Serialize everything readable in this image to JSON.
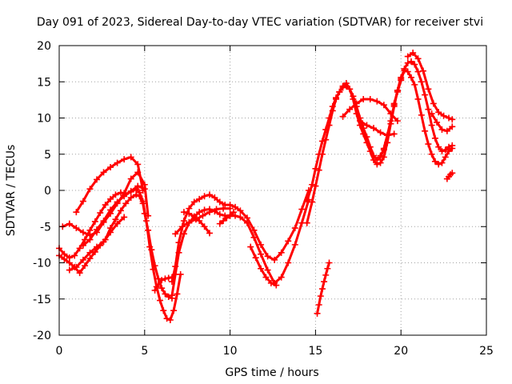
{
  "chart_data": {
    "type": "scatter",
    "title": "Day 091 of 2023, Sidereal Day-to-day VTEC variation (SDTVAR) for receiver stvi",
    "xlabel": "GPS time / hours",
    "ylabel": "SDTVAR / TECUs",
    "xlim": [
      0,
      25
    ],
    "ylim": [
      -20,
      20
    ],
    "xticks": [
      0,
      5,
      10,
      15,
      20,
      25
    ],
    "yticks": [
      -20,
      -15,
      -10,
      -5,
      0,
      5,
      10,
      15,
      20
    ],
    "grid": true,
    "marker": "+",
    "color": "#ff0000",
    "series": [
      {
        "x": [
          0.0,
          0.3,
          0.6,
          0.9,
          1.2,
          1.5,
          1.8,
          2.1,
          2.4,
          2.7,
          3.0,
          3.3,
          3.6,
          3.9,
          4.2,
          4.5,
          4.7,
          4.9,
          5.0,
          5.2,
          5.4,
          5.6,
          5.8,
          6.0,
          6.2,
          6.4,
          6.6
        ],
        "y": [
          -9.0,
          -9.5,
          -10.0,
          -10.6,
          -11.4,
          -10.4,
          -9.4,
          -8.5,
          -7.6,
          -6.8,
          -5.2,
          -4.0,
          -2.8,
          -1.8,
          -1.0,
          -0.6,
          -0.8,
          -1.8,
          -3.2,
          -5.5,
          -8.2,
          -10.4,
          -12.2,
          -13.5,
          -14.3,
          -14.7,
          -14.9
        ]
      },
      {
        "x": [
          0.0,
          0.3,
          0.6,
          0.9,
          1.2,
          1.5,
          1.8,
          2.1,
          2.4,
          2.7,
          3.0,
          3.3,
          3.6,
          3.9,
          4.2,
          4.5,
          4.7,
          4.9,
          5.1,
          5.3,
          5.5,
          5.7,
          5.9,
          6.1,
          6.3,
          6.5,
          6.7,
          6.9,
          7.1
        ],
        "y": [
          -8.0,
          -8.8,
          -9.3,
          -9.0,
          -8.0,
          -6.8,
          -5.5,
          -4.3,
          -3.1,
          -2.0,
          -1.2,
          -0.6,
          -0.3,
          -0.5,
          -0.2,
          0.2,
          -0.3,
          -1.5,
          -4.2,
          -7.8,
          -10.9,
          -13.3,
          -15.2,
          -16.6,
          -17.7,
          -17.9,
          -16.6,
          -14.3,
          -11.6
        ]
      },
      {
        "x": [
          1.0,
          1.4,
          1.8,
          2.2,
          2.6,
          3.0,
          3.4,
          3.8,
          4.2,
          4.6,
          4.9
        ],
        "y": [
          -3.0,
          -1.5,
          0.2,
          1.5,
          2.5,
          3.2,
          3.8,
          4.3,
          4.6,
          3.6,
          0.0
        ]
      },
      {
        "x": [
          0.2,
          0.6,
          1.0,
          1.4,
          1.8,
          2.2,
          2.6,
          3.0,
          3.4,
          3.8,
          4.2,
          4.6,
          5.0,
          5.2
        ],
        "y": [
          -5.0,
          -4.6,
          -5.2,
          -5.8,
          -6.2,
          -5.8,
          -4.4,
          -3.2,
          -1.8,
          -0.4,
          1.6,
          2.5,
          0.8,
          -3.5
        ]
      },
      {
        "x": [
          0.6,
          1.0,
          1.4,
          1.8,
          2.2,
          2.6,
          3.0,
          3.4,
          3.8
        ],
        "y": [
          -11.0,
          -10.6,
          -9.6,
          -8.6,
          -7.8,
          -7.1,
          -5.8,
          -4.6,
          -3.7
        ]
      },
      {
        "x": [
          1.4,
          1.8,
          2.2,
          2.6,
          3.0,
          3.4,
          3.8,
          4.2,
          4.6,
          5.0
        ],
        "y": [
          -7.6,
          -6.8,
          -5.4,
          -4.2,
          -2.7,
          -1.6,
          -0.8,
          -0.1,
          0.6,
          0.2
        ]
      },
      {
        "x": [
          5.6,
          5.8,
          6.0,
          6.2,
          6.4,
          6.6
        ],
        "y": [
          -13.8,
          -13.0,
          -12.4,
          -12.2,
          -12.1,
          -12.0
        ]
      },
      {
        "x": [
          6.6,
          6.8,
          7.0,
          7.3,
          7.6,
          7.9,
          8.2,
          8.5,
          8.8,
          9.1,
          9.4,
          9.7,
          10.0,
          10.3,
          10.6,
          11.0,
          11.4,
          11.8,
          12.2,
          12.6,
          13.0,
          13.4,
          13.8,
          14.2,
          14.6
        ],
        "y": [
          -12.6,
          -10.5,
          -7.2,
          -4.2,
          -2.5,
          -1.6,
          -1.2,
          -0.8,
          -0.6,
          -1.0,
          -1.6,
          -2.0,
          -2.0,
          -2.3,
          -2.8,
          -3.8,
          -5.5,
          -7.5,
          -9.1,
          -9.6,
          -8.6,
          -7.0,
          -5.2,
          -2.6,
          0.0
        ]
      },
      {
        "x": [
          6.6,
          6.8,
          7.0,
          7.3,
          7.6,
          7.9,
          8.2,
          8.5,
          8.8,
          9.1,
          9.4,
          9.7,
          10.0,
          10.3,
          10.6,
          11.0,
          11.4,
          11.8,
          12.2,
          12.6,
          13.0,
          13.4,
          13.8,
          14.2,
          14.6
        ],
        "y": [
          -14.5,
          -11.6,
          -8.6,
          -6.0,
          -4.5,
          -3.6,
          -3.0,
          -2.7,
          -2.6,
          -2.9,
          -3.3,
          -3.5,
          -3.5,
          -3.5,
          -3.7,
          -4.5,
          -6.5,
          -8.8,
          -11.0,
          -12.8,
          -12.0,
          -10.0,
          -7.5,
          -4.5,
          -1.3
        ]
      },
      {
        "x": [
          7.3,
          7.6,
          7.9,
          8.2,
          8.5,
          8.8
        ],
        "y": [
          -3.0,
          -3.2,
          -3.6,
          -4.2,
          -5.0,
          -5.9
        ]
      },
      {
        "x": [
          6.8,
          7.2,
          7.6,
          8.0,
          8.4,
          8.8,
          9.2,
          9.6,
          10.0
        ],
        "y": [
          -6.0,
          -5.0,
          -4.4,
          -4.0,
          -3.5,
          -3.0,
          -2.6,
          -2.5,
          -2.5
        ]
      },
      {
        "x": [
          9.4,
          9.6,
          9.8,
          10.0,
          10.2
        ],
        "y": [
          -4.6,
          -4.2,
          -3.8,
          -3.4,
          -3.0
        ]
      },
      {
        "x": [
          11.2,
          11.5,
          11.8,
          12.1,
          12.4,
          12.7
        ],
        "y": [
          -7.8,
          -9.3,
          -10.8,
          -12.0,
          -12.8,
          -13.1
        ]
      },
      {
        "x": [
          14.5,
          14.8,
          15.0,
          15.2,
          15.4,
          15.6,
          15.8,
          16.0,
          16.2,
          16.4,
          16.6,
          16.8,
          17.0,
          17.2,
          17.4,
          17.6,
          17.8,
          18.0,
          18.2,
          18.4,
          18.6,
          18.8,
          19.0,
          19.2,
          19.4,
          19.6,
          19.8,
          20.0,
          20.2,
          20.4,
          20.6,
          20.8,
          21.0,
          21.2,
          21.4,
          21.6,
          21.8,
          22.0,
          22.2,
          22.4,
          22.6,
          22.8,
          23.0
        ],
        "y": [
          -4.5,
          -1.6,
          0.6,
          2.8,
          5.0,
          7.0,
          9.0,
          11.0,
          12.6,
          13.6,
          14.2,
          14.4,
          14.0,
          13.0,
          11.6,
          10.0,
          8.6,
          7.4,
          6.0,
          4.8,
          4.2,
          4.6,
          5.8,
          7.6,
          9.6,
          11.8,
          13.8,
          15.4,
          16.8,
          17.6,
          17.8,
          17.4,
          16.4,
          15.0,
          13.2,
          11.2,
          9.0,
          7.2,
          6.0,
          5.4,
          5.6,
          6.0,
          6.2
        ]
      },
      {
        "x": [
          14.5,
          14.8,
          15.0,
          15.2,
          15.4,
          15.6,
          15.8,
          16.0,
          16.2,
          16.4,
          16.6,
          16.8,
          17.0,
          17.2,
          17.4,
          17.6,
          17.8,
          18.0,
          18.2,
          18.4,
          18.6,
          18.8,
          19.0,
          19.2,
          19.4,
          19.6,
          19.8,
          20.0,
          20.2,
          20.4,
          20.6,
          20.8,
          21.0,
          21.2,
          21.4,
          21.6,
          21.8,
          22.0,
          22.2,
          22.4,
          22.6,
          22.8,
          23.0
        ],
        "y": [
          -1.5,
          0.8,
          3.0,
          5.0,
          6.8,
          8.4,
          10.0,
          11.6,
          12.8,
          13.6,
          14.4,
          14.8,
          14.0,
          12.6,
          10.6,
          9.0,
          7.8,
          6.6,
          5.4,
          4.2,
          3.6,
          3.8,
          4.6,
          6.6,
          9.2,
          11.6,
          13.8,
          15.6,
          16.6,
          16.4,
          15.6,
          14.6,
          12.6,
          10.4,
          8.2,
          6.4,
          5.0,
          4.0,
          3.6,
          3.8,
          4.6,
          5.4,
          5.8
        ]
      },
      {
        "x": [
          16.6,
          17.0,
          17.4,
          17.8,
          18.2,
          18.6,
          19.0,
          19.4,
          19.8
        ],
        "y": [
          10.2,
          11.2,
          12.0,
          12.6,
          12.6,
          12.3,
          11.8,
          10.6,
          9.6
        ]
      },
      {
        "x": [
          17.6,
          18.0,
          18.4,
          18.8,
          19.2,
          19.6
        ],
        "y": [
          9.6,
          9.0,
          8.6,
          8.0,
          7.6,
          7.8
        ]
      },
      {
        "x": [
          20.4,
          20.7,
          21.0,
          21.3,
          21.6,
          21.9,
          22.2,
          22.5,
          22.8,
          23.0
        ],
        "y": [
          18.5,
          19.0,
          18.2,
          16.5,
          14.0,
          12.0,
          10.8,
          10.3,
          10.0,
          9.8
        ]
      },
      {
        "x": [
          21.8,
          22.1,
          22.4,
          22.7,
          23.0
        ],
        "y": [
          10.6,
          9.4,
          8.4,
          8.2,
          8.8
        ]
      },
      {
        "x": [
          22.7,
          22.8,
          22.9,
          23.0
        ],
        "y": [
          1.6,
          1.9,
          2.2,
          2.4
        ]
      },
      {
        "x": [
          15.1,
          15.2,
          15.3,
          15.4,
          15.5,
          15.6,
          15.7,
          15.8
        ],
        "y": [
          -17.0,
          -15.8,
          -14.6,
          -13.6,
          -12.6,
          -11.7,
          -10.8,
          -10.0
        ]
      },
      {
        "x": [
          19.6,
          19.8,
          20.0,
          20.2
        ],
        "y": [
          12.0,
          13.6,
          15.2,
          16.6
        ]
      },
      {
        "x": [
          18.8,
          19.0,
          19.2
        ],
        "y": [
          4.8,
          5.6,
          6.6
        ]
      }
    ]
  }
}
